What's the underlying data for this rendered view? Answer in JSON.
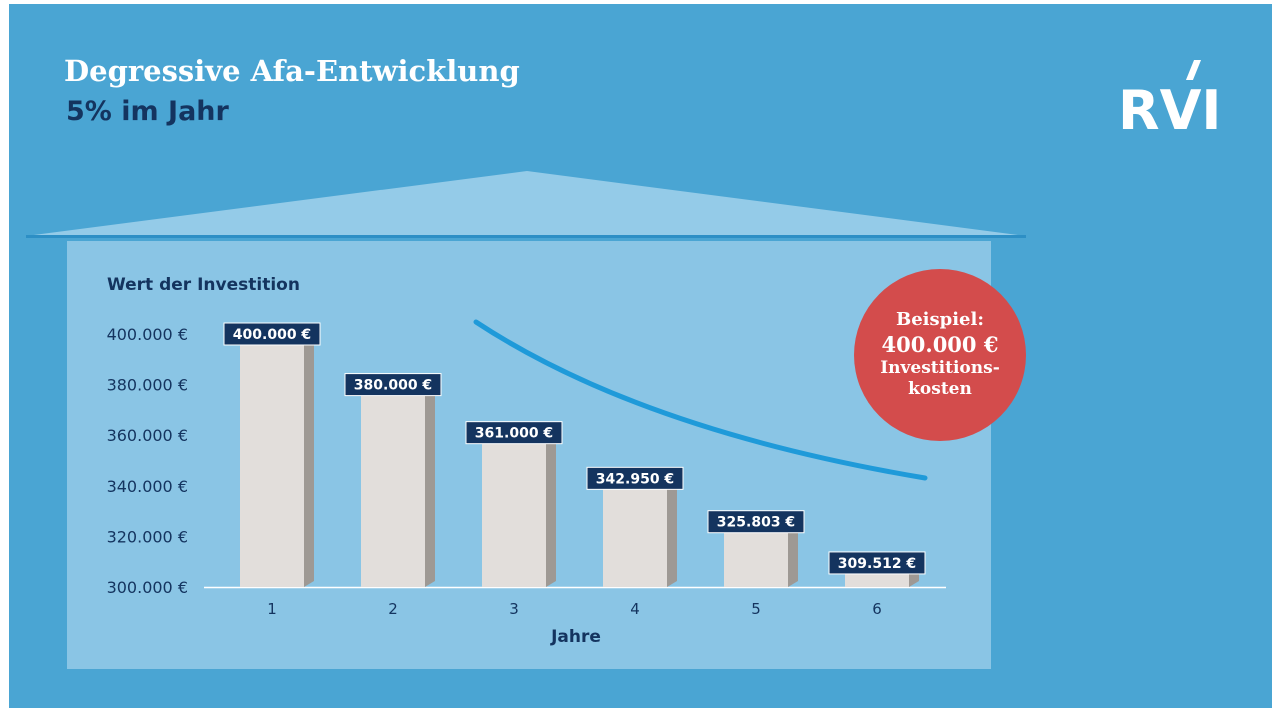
{
  "header": {
    "title": "Degressive Afa-Entwicklung",
    "subtitle": "5% im Jahr"
  },
  "logo": {
    "text": "RVI"
  },
  "badge": {
    "line1": "Beispiel:",
    "line2": "400.000 €",
    "line3": "Investitions-",
    "line4": "kosten"
  },
  "colors": {
    "background": "#4aa5d3",
    "panel": "#8ac5e5",
    "roof": "#94cbe8",
    "label_box": "#14345f",
    "bar_face": "#e2dedb",
    "badge": "#d34c4c",
    "trend": "#1f9ad9"
  },
  "chart_data": {
    "type": "bar",
    "ylabel": "Wert der Investition",
    "xlabel": "Jahre",
    "categories": [
      "1",
      "2",
      "3",
      "4",
      "5",
      "6"
    ],
    "values": [
      400000,
      380000,
      361000,
      342950,
      325803,
      309512
    ],
    "value_labels": [
      "400.000 €",
      "380.000 €",
      "361.000 €",
      "342.950 €",
      "325.803 €",
      "309.512 €"
    ],
    "ylim": [
      300000,
      400000
    ],
    "y_ticks": [
      400000,
      380000,
      360000,
      340000,
      320000,
      300000
    ],
    "y_tick_labels": [
      "400.000 €",
      "380.000 €",
      "360.000 €",
      "340.000 €",
      "320.000 €",
      "300.000 €"
    ],
    "grid": false,
    "legend": "none",
    "trend_line": "decreasing curve"
  }
}
